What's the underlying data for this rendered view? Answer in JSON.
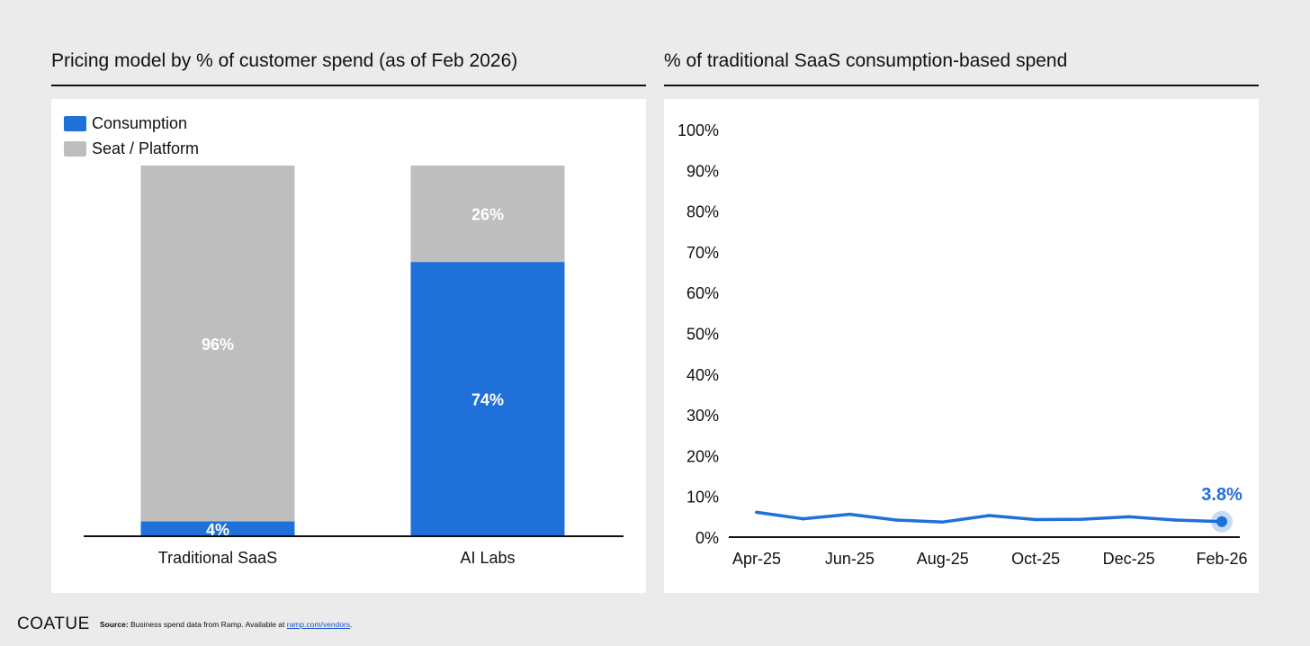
{
  "left_panel": {
    "title": "Pricing model by % of customer spend (as of Feb 2026)",
    "legend": [
      {
        "label": "Consumption",
        "color": "#2070da"
      },
      {
        "label": "Seat / Platform",
        "color": "#bebebe"
      }
    ]
  },
  "right_panel": {
    "title": "% of traditional SaaS consumption-based spend",
    "callout": "3.8%"
  },
  "footer": {
    "logo": "COATUE",
    "source_label": "Source:",
    "source_text": " Business spend data from Ramp. Available at ",
    "source_link": "ramp.com/vendors",
    "source_end": "."
  },
  "chart_data": [
    {
      "type": "bar",
      "stacked": true,
      "title": "Pricing model by % of customer spend (as of Feb 2026)",
      "categories": [
        "Traditional SaaS",
        "AI Labs"
      ],
      "series": [
        {
          "name": "Consumption",
          "values": [
            4,
            74
          ],
          "labels": [
            "4%",
            "74%"
          ],
          "color": "#2070da"
        },
        {
          "name": "Seat / Platform",
          "values": [
            96,
            26
          ],
          "labels": [
            "96%",
            "26%"
          ],
          "color": "#bebebe"
        }
      ],
      "ylim": [
        0,
        100
      ],
      "legend": "top-left",
      "grid": false
    },
    {
      "type": "line",
      "title": "% of traditional SaaS consumption-based spend",
      "x": [
        "Apr-25",
        "May-25",
        "Jun-25",
        "Jul-25",
        "Aug-25",
        "Sep-25",
        "Oct-25",
        "Nov-25",
        "Dec-25",
        "Jan-26",
        "Feb-26"
      ],
      "x_tick_labels": [
        "Apr-25",
        "Jun-25",
        "Aug-25",
        "Oct-25",
        "Dec-25",
        "Feb-26"
      ],
      "series": [
        {
          "values": [
            6.1,
            4.5,
            5.6,
            4.2,
            3.7,
            5.3,
            4.3,
            4.4,
            5.0,
            4.2,
            3.8
          ],
          "color": "#2070da"
        }
      ],
      "ylim": [
        0,
        100
      ],
      "y_ticks": [
        "0%",
        "10%",
        "20%",
        "30%",
        "40%",
        "50%",
        "60%",
        "70%",
        "80%",
        "90%",
        "100%"
      ],
      "annotation": "3.8%",
      "grid": false,
      "legend": "none"
    }
  ]
}
